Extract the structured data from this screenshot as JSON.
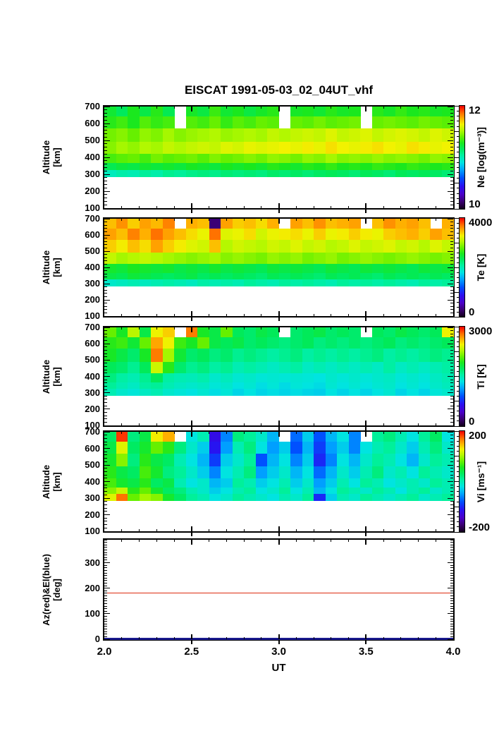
{
  "title": "EISCAT 1991-05-03_02_04UT_vhf",
  "xlabel": "UT",
  "x_tick_labels": [
    "2.0",
    "2.5",
    "3.0",
    "3.5",
    "4.0"
  ],
  "x_major_ticks": [
    2.5,
    3.0,
    3.5
  ],
  "colors": {
    "frame": "#000000",
    "background": "#ffffff",
    "az_line": "#dd2c10",
    "el_line": "#1a1a8e",
    "colormap": [
      [
        0.0,
        "#12001a"
      ],
      [
        0.07,
        "#3a0070"
      ],
      [
        0.14,
        "#4b00c8"
      ],
      [
        0.22,
        "#2a10f0"
      ],
      [
        0.3,
        "#0050ff"
      ],
      [
        0.38,
        "#00a4ff"
      ],
      [
        0.45,
        "#00e4e0"
      ],
      [
        0.52,
        "#00f0a0"
      ],
      [
        0.58,
        "#00ea5c"
      ],
      [
        0.64,
        "#1ae81e"
      ],
      [
        0.7,
        "#66f000"
      ],
      [
        0.76,
        "#b2f800"
      ],
      [
        0.82,
        "#f2f200"
      ],
      [
        0.875,
        "#ffb000"
      ],
      [
        0.93,
        "#ff6c00"
      ],
      [
        0.97,
        "#ff2a00"
      ],
      [
        1.0,
        "#e60000"
      ]
    ]
  },
  "chart_data": [
    {
      "name": "Ne",
      "type": "heatmap",
      "ylabel_line1": "Altitude",
      "ylabel_line2": "[km]",
      "y_range": [
        100,
        700
      ],
      "y_ticks": [
        700,
        600,
        500,
        400,
        300,
        200,
        100
      ],
      "x_range": [
        2.0,
        4.0
      ],
      "colorbar": {
        "label": "Ne [log(m⁻³)]",
        "min": 10,
        "max": 12,
        "top_label": "12",
        "bottom_label": "10"
      },
      "alt_edges": [
        700,
        640,
        570,
        490,
        420,
        365,
        325,
        285
      ],
      "n_cols": 30,
      "rows": [
        [
          11.24,
          11.16,
          11.28,
          11.2,
          11.3,
          11.18,
          null,
          11.26,
          11.21,
          11.33,
          11.24,
          11.28,
          11.21,
          11.26,
          11.3,
          null,
          11.26,
          11.28,
          11.24,
          11.3,
          11.26,
          11.28,
          null,
          11.3,
          11.26,
          11.32,
          11.28,
          11.3,
          11.26,
          11.28
        ],
        [
          11.3,
          11.34,
          11.28,
          11.37,
          11.32,
          11.35,
          null,
          11.37,
          11.34,
          11.4,
          11.32,
          11.38,
          11.35,
          11.4,
          11.38,
          null,
          11.4,
          11.38,
          11.42,
          11.38,
          11.4,
          11.42,
          null,
          11.4,
          11.42,
          11.4,
          11.38,
          11.42,
          11.4,
          11.38
        ],
        [
          11.42,
          11.45,
          11.4,
          11.47,
          11.44,
          11.5,
          11.45,
          11.48,
          11.5,
          11.52,
          11.48,
          11.5,
          11.52,
          11.5,
          11.55,
          11.52,
          11.55,
          11.57,
          11.55,
          11.6,
          11.55,
          11.57,
          11.6,
          11.55,
          11.58,
          11.6,
          11.58,
          11.55,
          11.6,
          11.57
        ],
        [
          11.45,
          11.5,
          11.47,
          11.52,
          11.5,
          11.55,
          11.52,
          11.55,
          11.57,
          11.55,
          11.6,
          11.58,
          11.62,
          11.6,
          11.62,
          11.64,
          11.62,
          11.65,
          11.62,
          11.67,
          11.64,
          11.62,
          11.65,
          11.67,
          11.64,
          11.62,
          11.67,
          11.65,
          11.62,
          11.64
        ],
        [
          11.35,
          11.38,
          11.4,
          11.35,
          11.42,
          11.38,
          11.4,
          11.42,
          11.38,
          11.44,
          11.4,
          11.42,
          11.45,
          11.42,
          11.47,
          11.45,
          11.42,
          11.47,
          11.45,
          11.5,
          11.45,
          11.47,
          11.45,
          11.48,
          11.45,
          11.47,
          11.45,
          11.42,
          11.47,
          11.45
        ],
        [
          11.18,
          11.22,
          11.2,
          11.25,
          11.22,
          11.25,
          11.22,
          11.27,
          11.25,
          11.22,
          11.28,
          11.25,
          11.28,
          11.25,
          11.3,
          11.28,
          11.25,
          11.3,
          11.28,
          11.32,
          11.28,
          11.3,
          11.28,
          11.32,
          11.3,
          11.28,
          11.32,
          11.3,
          11.28,
          11.3
        ],
        [
          10.98,
          11.02,
          11.0,
          11.05,
          11.02,
          11.07,
          11.05,
          11.08,
          11.1,
          11.08,
          11.12,
          11.1,
          11.12,
          11.1,
          11.14,
          11.12,
          11.15,
          11.12,
          11.15,
          11.17,
          11.15,
          11.12,
          11.17,
          11.15,
          11.12,
          11.17,
          11.15,
          11.17,
          11.15,
          11.12
        ]
      ]
    },
    {
      "name": "Te",
      "type": "heatmap",
      "ylabel_line1": "Altitude",
      "ylabel_line2": "[km]",
      "y_range": [
        100,
        700
      ],
      "y_ticks": [
        700,
        600,
        500,
        400,
        300,
        200,
        100
      ],
      "x_range": [
        2.0,
        4.0
      ],
      "colorbar": {
        "label": "Te [K]",
        "min": 0,
        "max": 4000,
        "top_label": "4000",
        "bottom_label": "0"
      },
      "alt_edges": [
        700,
        640,
        570,
        490,
        420,
        365,
        325,
        285
      ],
      "n_cols": 30,
      "rows": [
        [
          3450,
          3600,
          3400,
          3550,
          3470,
          3650,
          null,
          3500,
          3450,
          300,
          3550,
          3400,
          3450,
          3350,
          3500,
          null,
          3550,
          3450,
          3600,
          3450,
          3500,
          3550,
          null,
          3450,
          3600,
          3500,
          3550,
          3450,
          null,
          3500
        ],
        [
          3550,
          3450,
          3650,
          3500,
          3700,
          3550,
          3450,
          3350,
          3250,
          3700,
          3200,
          3250,
          3350,
          3150,
          3250,
          3300,
          3350,
          3250,
          3400,
          3250,
          3300,
          3400,
          3300,
          3250,
          3400,
          3450,
          3500,
          3400,
          3550,
          3450
        ],
        [
          3400,
          3300,
          3450,
          3350,
          3550,
          3400,
          3300,
          3200,
          3150,
          3450,
          3050,
          3150,
          3100,
          3050,
          3150,
          3100,
          3200,
          3100,
          3150,
          3050,
          3100,
          3200,
          3100,
          3150,
          3200,
          3100,
          3150,
          3050,
          3200,
          3100
        ],
        [
          3100,
          3000,
          3050,
          3100,
          3050,
          3000,
          2950,
          2900,
          2950,
          3000,
          2900,
          2950,
          2900,
          2850,
          2950,
          2900,
          2950,
          2850,
          2900,
          2950,
          2850,
          2900,
          2950,
          2900,
          2850,
          2900,
          2950,
          2900,
          2850,
          2900
        ],
        [
          2500,
          2450,
          2550,
          2500,
          2450,
          2500,
          2400,
          2450,
          2400,
          2500,
          2400,
          2450,
          2400,
          2350,
          2450,
          2400,
          2450,
          2400,
          2350,
          2450,
          2400,
          2350,
          2450,
          2400,
          2450,
          2400,
          2350,
          2450,
          2400,
          2450
        ],
        [
          2400,
          2350,
          2450,
          2400,
          2350,
          2300,
          2350,
          2400,
          2300,
          2350,
          2300,
          2350,
          2300,
          2250,
          2350,
          2300,
          2350,
          2300,
          2250,
          2350,
          2300,
          2350,
          2300,
          2250,
          2350,
          2300,
          2350,
          2300,
          2350,
          2300
        ],
        [
          1900,
          1950,
          2000,
          1950,
          2000,
          2050,
          2000,
          1950,
          2050,
          2000,
          2050,
          2000,
          2100,
          2050,
          2000,
          2100,
          2050,
          2100,
          2050,
          2000,
          2100,
          2050,
          2100,
          2050,
          2100,
          2050,
          2000,
          2100,
          2050,
          2100
        ]
      ]
    },
    {
      "name": "Ti",
      "type": "heatmap",
      "ylabel_line1": "Altitude",
      "ylabel_line2": "[km]",
      "y_range": [
        100,
        700
      ],
      "y_ticks": [
        700,
        600,
        500,
        400,
        300,
        200,
        100
      ],
      "x_range": [
        2.0,
        4.0
      ],
      "colorbar": {
        "label": "Ti [K]",
        "min": 0,
        "max": 3000,
        "top_label": "3000",
        "bottom_label": "0"
      },
      "alt_edges": [
        700,
        640,
        570,
        490,
        420,
        365,
        325,
        285
      ],
      "n_cols": 30,
      "rows": [
        [
          2100,
          1900,
          2300,
          1800,
          2450,
          2550,
          null,
          2750,
          1900,
          1800,
          2100,
          1750,
          1700,
          1800,
          1750,
          null,
          1700,
          1750,
          1800,
          1700,
          1750,
          1700,
          null,
          1750,
          1700,
          1800,
          1750,
          1700,
          1750,
          2450
        ],
        [
          1950,
          2000,
          1850,
          2100,
          2650,
          2450,
          2000,
          1900,
          2100,
          1800,
          1750,
          1800,
          1700,
          1750,
          1700,
          1650,
          1700,
          1750,
          1650,
          1700,
          1650,
          1700,
          1650,
          1700,
          1750,
          1650,
          1700,
          1650,
          1700,
          1750
        ],
        [
          1900,
          1800,
          1700,
          1900,
          2750,
          2250,
          1850,
          1700,
          1750,
          1650,
          1700,
          1600,
          1650,
          1600,
          1550,
          1600,
          1650,
          1550,
          1600,
          1550,
          1600,
          1550,
          1600,
          1650,
          1550,
          1600,
          1550,
          1600,
          1650,
          1600
        ],
        [
          1750,
          1700,
          1600,
          1750,
          2350,
          1950,
          1700,
          1600,
          1650,
          1550,
          1600,
          1500,
          1550,
          1500,
          1450,
          1500,
          1550,
          1450,
          1500,
          1450,
          1500,
          1450,
          1500,
          1450,
          1550,
          1450,
          1500,
          1450,
          1500,
          1550
        ],
        [
          1650,
          1550,
          1500,
          1600,
          1750,
          1550,
          1500,
          1480,
          1520,
          1420,
          1470,
          1400,
          1430,
          1380,
          1400,
          1380,
          1400,
          1380,
          1350,
          1420,
          1380,
          1420,
          1380,
          1420,
          1450,
          1380,
          1420,
          1380,
          1450,
          1500
        ],
        [
          1580,
          1500,
          1450,
          1550,
          1580,
          1500,
          1450,
          1420,
          1450,
          1380,
          1420,
          1350,
          1400,
          1330,
          1380,
          1320,
          1380,
          1350,
          1320,
          1400,
          1350,
          1400,
          1350,
          1400,
          1430,
          1350,
          1400,
          1350,
          1430,
          1470
        ],
        [
          1500,
          1420,
          1380,
          1450,
          1500,
          1420,
          1380,
          1350,
          1400,
          1330,
          1380,
          1300,
          1350,
          1300,
          1330,
          1300,
          1330,
          1300,
          1280,
          1350,
          1300,
          1350,
          1300,
          1350,
          1400,
          1300,
          1350,
          1300,
          1380,
          1420
        ]
      ]
    },
    {
      "name": "Vi",
      "type": "heatmap",
      "ylabel_line1": "Altitude",
      "ylabel_line2": "[km]",
      "y_range": [
        100,
        700
      ],
      "y_ticks": [
        700,
        600,
        500,
        400,
        300,
        200,
        100
      ],
      "x_range": [
        2.0,
        4.0
      ],
      "colorbar": {
        "label": "Vi [ms⁻¹]",
        "min": -200,
        "max": 200,
        "top_label": "200",
        "bottom_label": "-200"
      },
      "alt_edges": [
        700,
        640,
        570,
        490,
        420,
        365,
        325,
        285
      ],
      "n_cols": 30,
      "rows": [
        [
          30,
          185,
          20,
          40,
          130,
          150,
          null,
          -20,
          0,
          -120,
          -60,
          20,
          10,
          -10,
          -40,
          null,
          -70,
          -30,
          -80,
          -40,
          -20,
          -60,
          null,
          10,
          20,
          0,
          -20,
          10,
          30,
          -20
        ],
        [
          40,
          120,
          30,
          50,
          80,
          60,
          20,
          -10,
          -30,
          -110,
          -50,
          0,
          20,
          -20,
          -50,
          -30,
          -80,
          -40,
          -90,
          -50,
          -30,
          -60,
          -20,
          0,
          10,
          -10,
          -30,
          0,
          20,
          -10
        ],
        [
          50,
          90,
          20,
          60,
          40,
          30,
          0,
          -20,
          -40,
          -90,
          -30,
          -10,
          10,
          -80,
          -40,
          -20,
          -60,
          -30,
          -100,
          -60,
          -20,
          -40,
          -10,
          10,
          0,
          -20,
          -40,
          -10,
          10,
          0
        ],
        [
          60,
          40,
          30,
          70,
          50,
          20,
          10,
          -10,
          -30,
          -60,
          -20,
          0,
          20,
          -50,
          -30,
          -10,
          -40,
          -20,
          -70,
          -40,
          -10,
          -30,
          0,
          20,
          -10,
          0,
          -20,
          10,
          0,
          -10
        ],
        [
          70,
          50,
          40,
          60,
          30,
          40,
          0,
          -20,
          -10,
          -40,
          -30,
          10,
          0,
          -30,
          -20,
          0,
          -30,
          -10,
          -50,
          -30,
          0,
          -20,
          10,
          0,
          -20,
          -10,
          0,
          -10,
          10,
          0
        ],
        [
          90,
          110,
          60,
          80,
          50,
          30,
          20,
          0,
          -10,
          -30,
          -20,
          0,
          10,
          -20,
          -10,
          10,
          -20,
          0,
          -40,
          -20,
          10,
          0,
          -10,
          10,
          0,
          -20,
          0,
          10,
          -10,
          0
        ],
        [
          120,
          170,
          80,
          100,
          90,
          50,
          30,
          10,
          0,
          -20,
          -10,
          10,
          0,
          -10,
          -20,
          0,
          -10,
          10,
          -100,
          -30,
          0,
          -10,
          10,
          0,
          -10,
          0,
          10,
          -10,
          0,
          10
        ]
      ]
    },
    {
      "name": "AzEl",
      "type": "line",
      "ylabel_line1": "Az(red)&El(blue)",
      "ylabel_line2": "[deg]",
      "y_range": [
        0,
        390
      ],
      "y_ticks": [
        300,
        200,
        100,
        0
      ],
      "x_range": [
        2.0,
        4.0
      ],
      "series": [
        {
          "name": "Az",
          "color_key": "az_line",
          "value_deg": 181
        },
        {
          "name": "El",
          "color_key": "el_line",
          "value_deg": 2
        }
      ]
    }
  ]
}
